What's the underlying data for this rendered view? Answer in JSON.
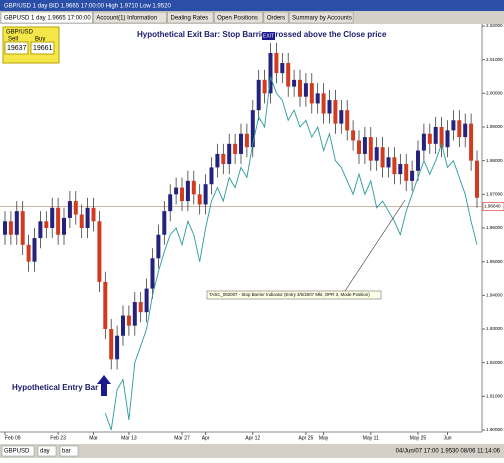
{
  "window": {
    "title": "GBP/USD 1 day BID 1.9665 17:00:00 High 1.9710 Low 1.9520",
    "tabs": [
      "GBPUSD 1 day 1.9665 17:00:00",
      "Account(1) Information",
      "Dealing Rates",
      "Open Positions",
      "Orders",
      "Summary by Accounts"
    ],
    "quote": {
      "symbol": "GBP/USD",
      "sell_label": "Sell",
      "buy_label": "Buy",
      "sell": "19637",
      "buy": "19661"
    },
    "status": [
      "GBPUSD",
      "day",
      "bar",
      "04/Jun/07 17:00  1.9530  08/06 11:14:06"
    ]
  },
  "chart_data": {
    "type": "candlestick",
    "exit_note": "Hypothetical Exit Bar: Stop Barrier crossed above the Close price",
    "exit_tag": "EXIT",
    "entry_note": "Hypothetical Entry Bar",
    "indicator_label": "TASC_092007 - Stop Barrier Indicator (Entry 3/6/2007 Mkt, OPR 3, Mode:Position)",
    "up_color": "#23237e",
    "down_color": "#d23c1e",
    "open": [
      1.958,
      1.962,
      1.958,
      1.965,
      1.955,
      1.95,
      1.957,
      1.962,
      1.96,
      1.966,
      1.958,
      1.963,
      1.968,
      1.964,
      1.96,
      1.966,
      1.962,
      1.944,
      1.93,
      1.921,
      1.928,
      1.934,
      1.931,
      1.938,
      1.935,
      1.942,
      1.951,
      1.958,
      1.965,
      1.97,
      1.972,
      1.968,
      1.974,
      1.97,
      1.967,
      1.973,
      1.978,
      1.982,
      1.979,
      1.985,
      1.982,
      1.988,
      1.984,
      1.995,
      2.004,
      2.0,
      2.012,
      2.006,
      2.009,
      2.002,
      2.004,
      1.999,
      2.003,
      1.997,
      2.0,
      1.994,
      1.998,
      1.991,
      1.995,
      1.989,
      1.986,
      1.982,
      1.987,
      1.98,
      1.984,
      1.978,
      1.981,
      1.976,
      1.979,
      1.974,
      1.977,
      1.983,
      1.988,
      1.985,
      1.99,
      1.984,
      1.989,
      1.992,
      1.987,
      1.991,
      1.98
    ],
    "high": [
      1.965,
      1.965,
      1.968,
      1.968,
      1.958,
      1.96,
      1.965,
      1.965,
      1.969,
      1.969,
      1.966,
      1.971,
      1.971,
      1.967,
      1.969,
      1.969,
      1.965,
      1.947,
      1.933,
      1.931,
      1.937,
      1.937,
      1.941,
      1.941,
      1.945,
      1.954,
      1.961,
      1.968,
      1.973,
      1.975,
      1.975,
      1.977,
      1.977,
      1.973,
      1.976,
      1.981,
      1.985,
      1.985,
      1.988,
      1.988,
      1.991,
      1.991,
      1.998,
      2.007,
      2.007,
      2.015,
      2.015,
      2.012,
      2.012,
      2.007,
      2.007,
      2.006,
      2.006,
      2.003,
      2.003,
      2.001,
      2.001,
      1.998,
      1.998,
      1.992,
      1.989,
      1.99,
      1.99,
      1.987,
      1.987,
      1.984,
      1.984,
      1.982,
      1.982,
      1.98,
      1.986,
      1.991,
      1.991,
      1.993,
      1.993,
      1.992,
      1.995,
      1.995,
      1.994,
      1.994,
      1.983
    ],
    "low": [
      1.955,
      1.955,
      1.955,
      1.952,
      1.947,
      1.947,
      1.954,
      1.957,
      1.957,
      1.955,
      1.955,
      1.96,
      1.961,
      1.957,
      1.957,
      1.959,
      1.941,
      1.927,
      1.918,
      1.918,
      1.925,
      1.928,
      1.928,
      1.932,
      1.932,
      1.939,
      1.948,
      1.955,
      1.962,
      1.967,
      1.965,
      1.965,
      1.967,
      1.964,
      1.964,
      1.97,
      1.975,
      1.976,
      1.976,
      1.979,
      1.979,
      1.981,
      1.981,
      1.992,
      1.997,
      1.997,
      2.003,
      2.003,
      1.999,
      1.999,
      1.996,
      1.996,
      1.994,
      1.994,
      1.991,
      1.991,
      1.988,
      1.988,
      1.986,
      1.983,
      1.979,
      1.979,
      1.977,
      1.977,
      1.975,
      1.975,
      1.973,
      1.973,
      1.971,
      1.971,
      1.974,
      1.98,
      1.982,
      1.982,
      1.981,
      1.981,
      1.986,
      1.984,
      1.984,
      1.977,
      1.966
    ],
    "close": [
      1.962,
      1.958,
      1.965,
      1.955,
      1.95,
      1.957,
      1.962,
      1.96,
      1.966,
      1.958,
      1.963,
      1.968,
      1.964,
      1.96,
      1.966,
      1.962,
      1.944,
      1.93,
      1.921,
      1.928,
      1.934,
      1.931,
      1.938,
      1.935,
      1.942,
      1.951,
      1.958,
      1.965,
      1.97,
      1.972,
      1.968,
      1.974,
      1.97,
      1.967,
      1.973,
      1.978,
      1.982,
      1.979,
      1.985,
      1.982,
      1.988,
      1.984,
      1.995,
      2.004,
      2.0,
      2.012,
      2.006,
      2.009,
      2.002,
      2.004,
      1.999,
      2.003,
      1.997,
      2.0,
      1.994,
      1.998,
      1.991,
      1.995,
      1.989,
      1.986,
      1.982,
      1.987,
      1.98,
      1.984,
      1.978,
      1.981,
      1.976,
      1.979,
      1.974,
      1.977,
      1.983,
      1.988,
      1.985,
      1.99,
      1.984,
      1.989,
      1.992,
      1.987,
      1.991,
      1.98,
      1.969
    ],
    "stop_line": {
      "color": "#2a9b9b",
      "values": [
        null,
        null,
        null,
        null,
        null,
        null,
        null,
        null,
        null,
        null,
        null,
        null,
        null,
        null,
        null,
        null,
        null,
        1.905,
        1.9,
        1.912,
        1.915,
        1.903,
        1.92,
        1.925,
        1.93,
        1.94,
        1.947,
        1.953,
        1.958,
        1.96,
        1.955,
        1.962,
        1.958,
        1.95,
        1.96,
        1.968,
        1.972,
        1.968,
        1.975,
        1.972,
        1.978,
        1.975,
        1.985,
        1.993,
        1.99,
        2.005,
        2.0,
        1.998,
        1.992,
        1.995,
        1.99,
        1.992,
        1.987,
        1.99,
        1.983,
        1.988,
        1.98,
        1.978,
        1.974,
        1.97,
        1.976,
        1.97,
        1.974,
        1.966,
        1.968,
        1.965,
        1.962,
        1.958,
        1.965,
        1.97,
        1.975,
        1.98,
        1.976,
        1.98,
        1.985,
        1.978,
        1.98,
        1.975,
        1.97,
        1.962,
        1.955
      ]
    },
    "last_price": {
      "value": 1.9664,
      "label": "1.96640"
    },
    "ylim": [
      1.9,
      2.02
    ],
    "yticks": [
      {
        "value": 1.9,
        "label": "1.90000"
      },
      {
        "value": 1.91,
        "label": "1.91000"
      },
      {
        "value": 1.92,
        "label": "1.92000"
      },
      {
        "value": 1.93,
        "label": "1.93000"
      },
      {
        "value": 1.94,
        "label": "1.94000"
      },
      {
        "value": 1.95,
        "label": "1.95000"
      },
      {
        "value": 1.96,
        "label": "1.96000"
      },
      {
        "value": 1.97,
        "label": "1.97000"
      },
      {
        "value": 1.98,
        "label": "1.98000"
      },
      {
        "value": 1.99,
        "label": "1.99000"
      },
      {
        "value": 2.0,
        "label": "2.00000"
      },
      {
        "value": 2.01,
        "label": "2.01000"
      },
      {
        "value": 2.02,
        "label": "2.02000"
      }
    ],
    "xticks": [
      {
        "value": 0,
        "label": "Feb 09"
      },
      {
        "value": 9,
        "label": "Feb 23"
      },
      {
        "value": 15,
        "label": "Mar"
      },
      {
        "value": 21,
        "label": "Mar 13"
      },
      {
        "value": 30,
        "label": "Mar 27"
      },
      {
        "value": 34,
        "label": "Apr"
      },
      {
        "value": 42,
        "label": "Apr 12"
      },
      {
        "value": 51,
        "label": "Apr 25"
      },
      {
        "value": 54,
        "label": "May"
      },
      {
        "value": 62,
        "label": "May 11"
      },
      {
        "value": 70,
        "label": "May 25"
      },
      {
        "value": 75,
        "label": "Jun"
      }
    ]
  }
}
